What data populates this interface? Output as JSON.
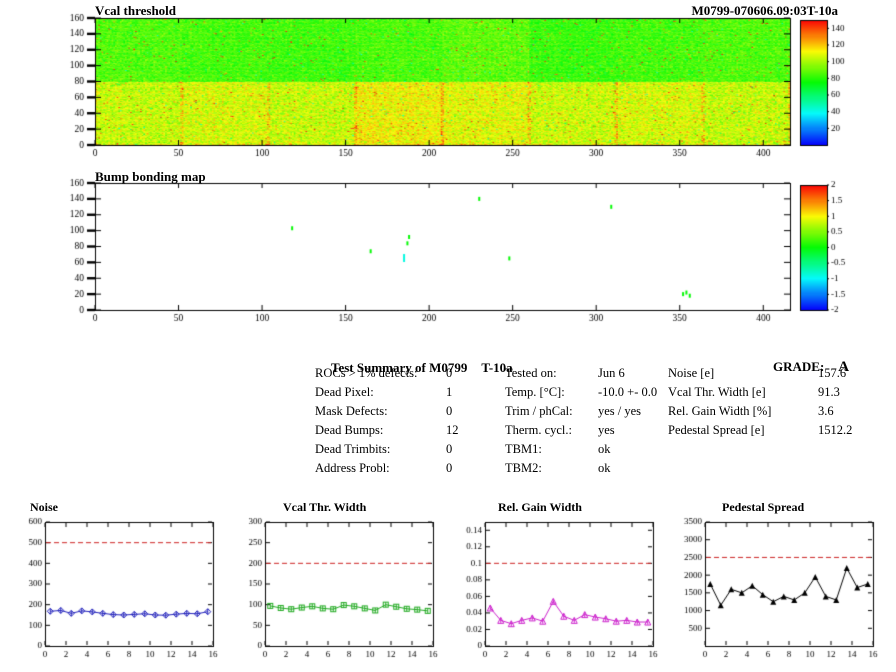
{
  "summary": {
    "title": "Test Summary of M0799",
    "module_type": "T-10a",
    "grade_label": "GRADE:",
    "grade_value": "A",
    "defects": [
      {
        "label": "ROCs > 1% defects:",
        "value": "0"
      },
      {
        "label": "Dead Pixel:",
        "value": "1"
      },
      {
        "label": "Mask Defects:",
        "value": "0"
      },
      {
        "label": "Dead Bumps:",
        "value": "12"
      },
      {
        "label": "Dead Trimbits:",
        "value": "0"
      },
      {
        "label": "Address Probl:",
        "value": "0"
      }
    ],
    "conditions": [
      {
        "label": "Tested on:",
        "value": "Jun 6"
      },
      {
        "label": "Temp. [°C]:",
        "value": "-10.0 +- 0.0"
      },
      {
        "label": "Trim / phCal:",
        "value": "yes / yes"
      },
      {
        "label": "Therm. cycl.:",
        "value": "yes"
      },
      {
        "label": "TBM1:",
        "value": "ok"
      },
      {
        "label": "TBM2:",
        "value": "ok"
      }
    ],
    "results": [
      {
        "label": "Noise [e]",
        "value": "157.6"
      },
      {
        "label": "Vcal Thr. Width [e]",
        "value": "91.3"
      },
      {
        "label": "Rel. Gain Width [%]",
        "value": "3.6"
      },
      {
        "label": "Pedestal Spread [e]",
        "value": "1512.2"
      }
    ]
  },
  "chart_data": [
    {
      "id": "vcal_threshold",
      "type": "heatmap",
      "title": "Vcal threshold",
      "right_title": "M0799-070606.09:03T-10a",
      "xlim": [
        0,
        416
      ],
      "ylim": [
        0,
        160
      ],
      "xticks": [
        0,
        50,
        100,
        150,
        200,
        250,
        300,
        350,
        400
      ],
      "yticks": [
        0,
        20,
        40,
        60,
        80,
        100,
        120,
        140,
        160
      ],
      "zmin": 0,
      "zmax": 150,
      "colorbar_ticks": [
        140,
        120,
        100,
        80,
        60,
        40,
        20
      ],
      "roc_grid": {
        "cols": 8,
        "rows": 2
      },
      "n_cols": 416,
      "n_rows": 160,
      "top_row_means": [
        86,
        84,
        83,
        85,
        88,
        82,
        84,
        86
      ],
      "bottom_row_means": [
        104,
        107,
        104,
        112,
        109,
        105,
        107,
        104
      ],
      "noise_sigma_top": 6,
      "noise_sigma_bottom": 8,
      "hot_fraction": 0.012,
      "seed": 20799
    },
    {
      "id": "bump_bonding",
      "type": "heatmap_sparse",
      "title": "Bump bonding map",
      "xlim": [
        0,
        416
      ],
      "ylim": [
        0,
        160
      ],
      "xticks": [
        0,
        50,
        100,
        150,
        200,
        250,
        300,
        350,
        400
      ],
      "yticks": [
        0,
        20,
        40,
        60,
        80,
        100,
        120,
        140,
        160
      ],
      "zmin": -2,
      "zmax": 2,
      "colorbar_ticks": [
        2,
        1.5,
        1,
        0.5,
        0,
        -0.5,
        -1,
        -1.5,
        -2
      ],
      "defects": [
        {
          "x": 230,
          "y": 140,
          "v": 0
        },
        {
          "x": 309,
          "y": 130,
          "v": 0
        },
        {
          "x": 188,
          "y": 92,
          "v": 0
        },
        {
          "x": 187,
          "y": 84,
          "v": 0
        },
        {
          "x": 185,
          "y": 68,
          "v": -0.9
        },
        {
          "x": 185,
          "y": 63,
          "v": -0.9
        },
        {
          "x": 248,
          "y": 65,
          "v": 0
        },
        {
          "x": 165,
          "y": 74,
          "v": 0
        },
        {
          "x": 352,
          "y": 20,
          "v": 0
        },
        {
          "x": 356,
          "y": 18,
          "v": 0
        },
        {
          "x": 354,
          "y": 22,
          "v": 0
        },
        {
          "x": 118,
          "y": 103,
          "v": 0
        }
      ]
    },
    {
      "id": "noise",
      "type": "line",
      "title": "Noise",
      "xlim": [
        0,
        16
      ],
      "xticks": [
        0,
        2,
        4,
        6,
        8,
        10,
        12,
        14,
        16
      ],
      "ylim": [
        0,
        600
      ],
      "yticks": [
        0,
        100,
        200,
        300,
        400,
        500,
        600
      ],
      "ytick_labels": [
        "0",
        "100",
        "200",
        "300",
        "400",
        "500",
        "600"
      ],
      "ref_line": 500,
      "ref_color": "#cc2222",
      "color": "#2222bb",
      "marker": "diamond",
      "yerr": 14,
      "values": [
        168,
        172,
        158,
        170,
        165,
        158,
        152,
        150,
        153,
        156,
        150,
        149,
        154,
        158,
        156,
        166
      ]
    },
    {
      "id": "vcal_width",
      "type": "line",
      "title": "Vcal Thr. Width",
      "xlim": [
        0,
        16
      ],
      "xticks": [
        0,
        2,
        4,
        6,
        8,
        10,
        12,
        14,
        16
      ],
      "ylim": [
        0,
        300
      ],
      "yticks": [
        0,
        50,
        100,
        150,
        200,
        250,
        300
      ],
      "ytick_labels": [
        "0",
        "50",
        "100",
        "150",
        "200",
        "250",
        "300"
      ],
      "ref_line": 200,
      "ref_color": "#cc2222",
      "color": "#22aa22",
      "marker": "square",
      "yerr": 6,
      "values": [
        97,
        92,
        89,
        93,
        96,
        91,
        89,
        99,
        96,
        91,
        86,
        100,
        95,
        90,
        88,
        85
      ]
    },
    {
      "id": "rel_gain_width",
      "type": "line",
      "title": "Rel. Gain Width",
      "xlim": [
        0,
        16
      ],
      "xticks": [
        0,
        2,
        4,
        6,
        8,
        10,
        12,
        14,
        16
      ],
      "ylim": [
        0,
        0.15
      ],
      "yticks": [
        0,
        0.02,
        0.04,
        0.06,
        0.08,
        0.1,
        0.12,
        0.14
      ],
      "ytick_labels": [
        "0",
        "0.02",
        "0.04",
        "0.06",
        "0.08",
        "0.1",
        "0.12",
        "0.14"
      ],
      "ref_line": 0.1,
      "ref_color": "#cc2222",
      "color": "#cc22cc",
      "marker": "triangle",
      "yerr": 0.003,
      "values": [
        0.046,
        0.031,
        0.027,
        0.031,
        0.034,
        0.03,
        0.054,
        0.036,
        0.031,
        0.038,
        0.035,
        0.033,
        0.03,
        0.031,
        0.029,
        0.029
      ]
    },
    {
      "id": "pedestal_spread",
      "type": "line",
      "title": "Pedestal Spread",
      "xlim": [
        0,
        16
      ],
      "xticks": [
        0,
        2,
        4,
        6,
        8,
        10,
        12,
        14,
        16
      ],
      "ylim": [
        0,
        3500
      ],
      "yticks": [
        500,
        1000,
        1500,
        2000,
        2500,
        3000,
        3500
      ],
      "ytick_labels": [
        "500",
        "1000",
        "1500",
        "2000",
        "2500",
        "3000",
        "3500"
      ],
      "ref_line": 2500,
      "ref_color": "#cc2222",
      "color": "#000000",
      "marker": "triangle-filled",
      "yerr": 0,
      "values": [
        1750,
        1150,
        1600,
        1500,
        1700,
        1450,
        1250,
        1400,
        1300,
        1500,
        1950,
        1400,
        1300,
        2200,
        1650,
        1750
      ]
    }
  ]
}
